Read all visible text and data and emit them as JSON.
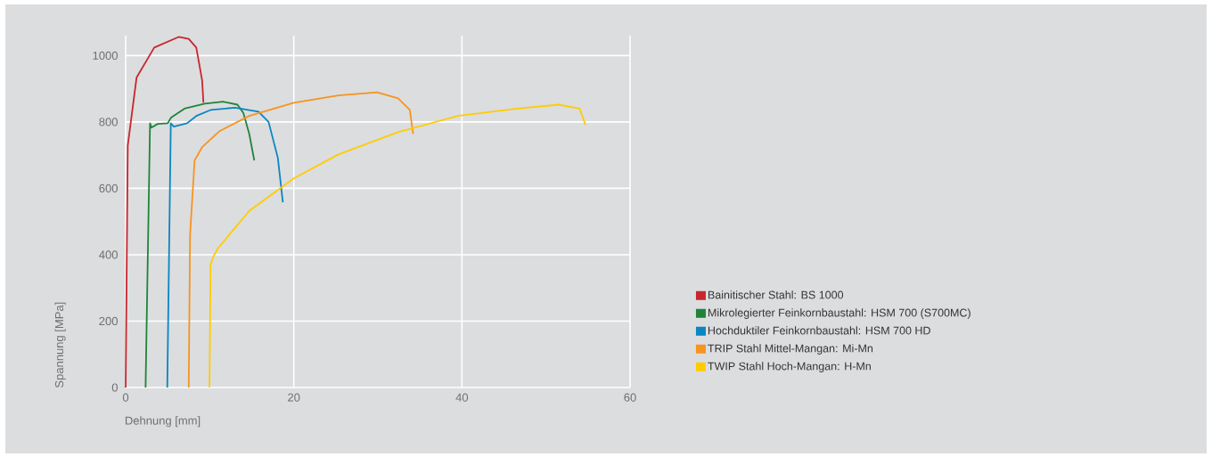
{
  "chart_data": {
    "type": "line",
    "xlabel": "Dehnung [mm]",
    "ylabel": "Spannung [MPa]",
    "xlim": [
      0,
      60
    ],
    "ylim": [
      0,
      1060
    ],
    "xticks": [
      0,
      20,
      40,
      60
    ],
    "yticks": [
      0,
      200,
      400,
      600,
      800,
      1000
    ],
    "grid": true,
    "legend": "right",
    "marker": "none",
    "line_style": "solid",
    "series": [
      {
        "name": "Bainitischer Stahl: BS 1000",
        "color": "#c8262e",
        "x": [
          0,
          0.25,
          1.3,
          3.4,
          6.3,
          7.5,
          8.4,
          9.1,
          9.25
        ],
        "values": [
          0,
          729,
          934,
          1024,
          1056,
          1050,
          1024,
          925,
          858
        ]
      },
      {
        "name": "Mikrolegierter Feinkornbaustahl: HSM 700 (S700MC)",
        "color": "#1f8438",
        "x": [
          2.37,
          2.9,
          3.07,
          3.8,
          5.0,
          5.4,
          7.0,
          9.4,
          11.6,
          13.3,
          14.0,
          14.7,
          15.3
        ],
        "values": [
          0,
          796,
          783,
          794,
          796,
          813,
          840,
          855,
          861,
          852,
          827,
          764,
          684
        ]
      },
      {
        "name": "Hochduktiler Feinkornbaustahl: HSM 700 HD",
        "color": "#0a86c1",
        "x": [
          4.95,
          5.37,
          5.73,
          7.3,
          8.4,
          10.1,
          13.0,
          15.8,
          17.0,
          18.1,
          18.7
        ],
        "values": [
          0,
          796,
          786,
          796,
          818,
          836,
          843,
          831,
          800,
          692,
          558
        ]
      },
      {
        "name": "TRIP Stahl Mittel-Mangan: Mi-Mn",
        "color": "#f7941d",
        "x": [
          7.5,
          7.66,
          8.2,
          9.1,
          11.2,
          14.7,
          20.0,
          25.3,
          29.9,
          32.4,
          33.8,
          34.2
        ],
        "values": [
          0,
          460,
          684,
          724,
          773,
          818,
          858,
          880,
          889,
          871,
          836,
          764
        ]
      },
      {
        "name": "TWIP Stahl Hoch-Mangan: H-Mn",
        "color": "#ffcc00",
        "x": [
          9.97,
          10.1,
          10.5,
          11.0,
          14.7,
          20.0,
          25.3,
          32.4,
          39.5,
          46.6,
          51.5,
          54.0,
          54.7
        ],
        "values": [
          0,
          371,
          398,
          420,
          532,
          630,
          702,
          769,
          818,
          840,
          852,
          840,
          791
        ]
      }
    ]
  }
}
